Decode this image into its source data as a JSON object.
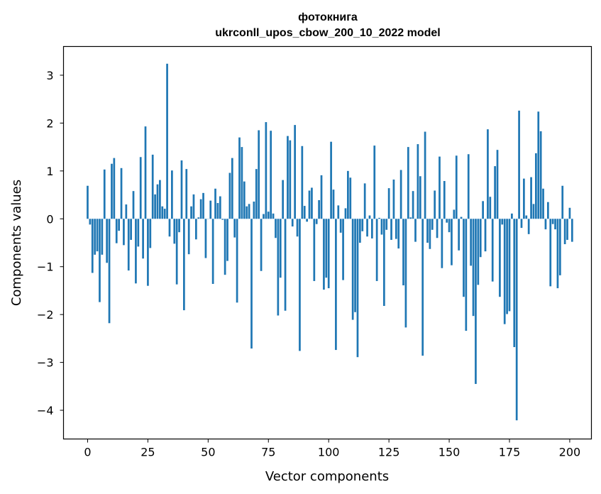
{
  "chart_data": {
    "type": "bar",
    "title_line1": "фотокнига",
    "title_line2": "ukrconll_upos_cbow_200_10_2022 model",
    "xlabel": "Vector components",
    "ylabel": "Components values",
    "xlim": [
      -10,
      209
    ],
    "ylim": [
      -4.6,
      3.6
    ],
    "xticks": [
      0,
      25,
      50,
      75,
      100,
      125,
      150,
      175,
      200
    ],
    "xtick_labels": [
      "0",
      "25",
      "50",
      "75",
      "100",
      "125",
      "150",
      "175",
      "200"
    ],
    "yticks": [
      -4,
      -3,
      -2,
      -1,
      0,
      1,
      2,
      3
    ],
    "ytick_labels": [
      "−4",
      "−3",
      "−2",
      "−1",
      "0",
      "1",
      "2",
      "3"
    ],
    "bar_color": "#1f77b4",
    "values": [
      0.69,
      -0.12,
      -1.13,
      -0.75,
      -0.68,
      -1.74,
      -0.75,
      1.03,
      -0.92,
      -2.18,
      1.15,
      1.27,
      -0.51,
      -0.25,
      1.06,
      -0.55,
      0.3,
      -1.08,
      -0.44,
      0.58,
      -1.35,
      -0.58,
      1.29,
      -0.83,
      1.93,
      -1.4,
      -0.61,
      1.34,
      0.51,
      0.72,
      0.81,
      0.26,
      0.21,
      3.24,
      -0.37,
      1.01,
      -0.52,
      -1.37,
      -0.28,
      1.22,
      -1.91,
      1.04,
      -0.74,
      0.26,
      0.51,
      -0.43,
      0.03,
      0.41,
      0.54,
      -0.82,
      0.0,
      0.38,
      -1.36,
      0.63,
      0.33,
      0.47,
      -0.02,
      -1.17,
      -0.88,
      0.96,
      1.27,
      -0.39,
      -1.75,
      1.7,
      1.5,
      0.78,
      0.26,
      0.31,
      -2.71,
      0.36,
      1.04,
      1.85,
      -1.09,
      0.1,
      2.02,
      0.15,
      1.84,
      0.11,
      -0.4,
      -2.02,
      -1.23,
      0.81,
      -1.92,
      1.73,
      1.64,
      -0.16,
      1.96,
      -0.37,
      -2.76,
      1.52,
      0.27,
      -0.06,
      0.59,
      0.65,
      -1.3,
      -0.11,
      0.39,
      0.91,
      -1.48,
      -1.23,
      -1.45,
      1.61,
      0.61,
      -2.74,
      0.28,
      -0.29,
      -1.28,
      0.22,
      1.0,
      0.86,
      -2.11,
      -1.95,
      -2.89,
      -0.5,
      -0.26,
      0.74,
      -0.37,
      0.07,
      -0.41,
      1.53,
      -1.3,
      0.02,
      -0.33,
      -1.82,
      -0.23,
      0.64,
      -0.44,
      0.82,
      -0.42,
      -0.62,
      1.02,
      -1.39,
      -2.27,
      1.5,
      0.03,
      0.58,
      -0.48,
      1.56,
      0.89,
      -2.86,
      1.82,
      -0.5,
      -0.63,
      -0.23,
      0.59,
      -0.4,
      1.3,
      -1.03,
      0.79,
      -0.08,
      -0.28,
      -0.97,
      0.19,
      1.32,
      -0.66,
      0.04,
      -1.63,
      -2.34,
      1.35,
      -0.98,
      -2.03,
      -3.45,
      -1.38,
      -0.8,
      0.37,
      -0.68,
      1.87,
      0.46,
      -1.31,
      1.1,
      1.44,
      -1.63,
      -0.12,
      -2.2,
      -1.99,
      -1.93,
      0.11,
      -2.68,
      -4.21,
      2.26,
      -0.19,
      0.84,
      0.07,
      -0.32,
      0.87,
      0.31,
      1.37,
      2.24,
      1.83,
      0.63,
      -0.22,
      0.35,
      -1.41,
      -0.11,
      -0.22,
      -1.45,
      -1.18,
      0.69,
      -0.53,
      -0.44,
      0.23,
      -0.48
    ]
  }
}
